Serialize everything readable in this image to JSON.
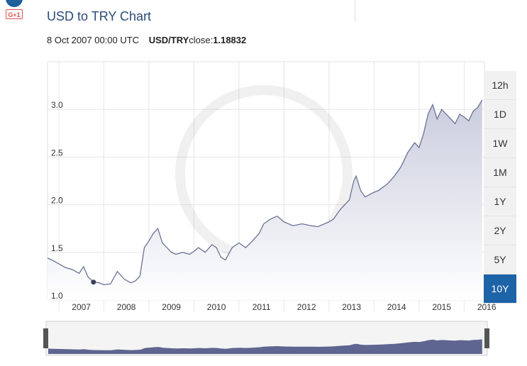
{
  "header": {
    "gplus_label": "G+1",
    "title": "USD to TRY Chart",
    "date": "8 Oct 2007 00:00 UTC",
    "pair": "USD/TRY",
    "close_label": "close:",
    "close_value": "1.18832"
  },
  "range_buttons": [
    {
      "label": "12h",
      "active": false
    },
    {
      "label": "1D",
      "active": false
    },
    {
      "label": "1W",
      "active": false
    },
    {
      "label": "1M",
      "active": false
    },
    {
      "label": "1Y",
      "active": false
    },
    {
      "label": "2Y",
      "active": false
    },
    {
      "label": "5Y",
      "active": false
    },
    {
      "label": "10Y",
      "active": true
    }
  ],
  "colors": {
    "line": "#6a7196",
    "area_top": "#c9ccdd",
    "area_bottom": "#ffffff",
    "navigator_fill": "#5e6590",
    "active_button": "#1d63a8",
    "title": "#2a4a7a"
  },
  "chart_data": {
    "type": "area",
    "title": "USD to TRY Chart",
    "xlabel": "",
    "ylabel": "",
    "ylim": [
      1.0,
      3.5
    ],
    "xlim": [
      2006.75,
      2016.45
    ],
    "y_ticks": [
      "1.0",
      "1.5",
      "2.0",
      "2.5",
      "3.0"
    ],
    "x_ticks": [
      "2007",
      "2008",
      "2009",
      "2010",
      "2011",
      "2012",
      "2013",
      "2014",
      "2015",
      "2016"
    ],
    "grid": true,
    "legend": "none",
    "marker": {
      "x": 2007.77,
      "y": 1.18832,
      "label": "8 Oct 2007"
    },
    "series": [
      {
        "x": [
          2006.75,
          2006.85,
          2007.0,
          2007.15,
          2007.3,
          2007.45,
          2007.55,
          2007.65,
          2007.77,
          2007.9,
          2008.0,
          2008.15,
          2008.3,
          2008.45,
          2008.6,
          2008.7,
          2008.8,
          2008.9,
          2009.0,
          2009.1,
          2009.2,
          2009.3,
          2009.4,
          2009.5,
          2009.6,
          2009.75,
          2009.9,
          2010.0,
          2010.1,
          2010.25,
          2010.4,
          2010.5,
          2010.6,
          2010.7,
          2010.85,
          2011.0,
          2011.15,
          2011.3,
          2011.45,
          2011.55,
          2011.7,
          2011.85,
          2012.0,
          2012.2,
          2012.4,
          2012.6,
          2012.75,
          2012.9,
          2013.0,
          2013.1,
          2013.25,
          2013.35,
          2013.45,
          2013.55,
          2013.6,
          2013.7,
          2013.8,
          2013.95,
          2014.1,
          2014.3,
          2014.45,
          2014.6,
          2014.75,
          2014.9,
          2015.0,
          2015.1,
          2015.2,
          2015.3,
          2015.4,
          2015.5,
          2015.6,
          2015.7,
          2015.8,
          2015.9,
          2016.0,
          2016.1,
          2016.2,
          2016.3,
          2016.4
        ],
        "values": [
          1.44,
          1.42,
          1.38,
          1.34,
          1.32,
          1.28,
          1.35,
          1.24,
          1.19,
          1.18,
          1.16,
          1.17,
          1.3,
          1.22,
          1.18,
          1.2,
          1.25,
          1.55,
          1.62,
          1.7,
          1.75,
          1.6,
          1.55,
          1.5,
          1.48,
          1.5,
          1.48,
          1.51,
          1.55,
          1.5,
          1.58,
          1.55,
          1.45,
          1.42,
          1.55,
          1.6,
          1.55,
          1.62,
          1.7,
          1.8,
          1.85,
          1.88,
          1.82,
          1.78,
          1.8,
          1.78,
          1.77,
          1.8,
          1.82,
          1.85,
          1.95,
          2.0,
          2.05,
          2.25,
          2.3,
          2.15,
          2.08,
          2.12,
          2.15,
          2.22,
          2.3,
          2.4,
          2.55,
          2.65,
          2.6,
          2.75,
          2.95,
          3.05,
          2.9,
          3.0,
          2.95,
          2.9,
          2.85,
          2.95,
          2.92,
          2.88,
          2.98,
          3.02,
          3.1
        ]
      }
    ]
  }
}
